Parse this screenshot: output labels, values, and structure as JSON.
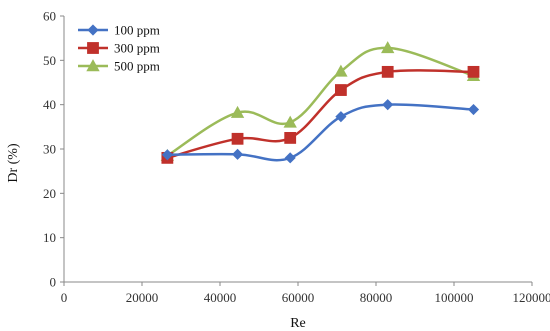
{
  "chart_data": {
    "type": "line",
    "title": "",
    "xlabel": "Re",
    "ylabel": "Dr (%)",
    "xlim": [
      0,
      120000
    ],
    "ylim": [
      0,
      60
    ],
    "xticks": [
      0,
      20000,
      40000,
      60000,
      80000,
      100000,
      120000
    ],
    "xtick_labels": [
      "0",
      "20000",
      "40000",
      "60000",
      "80000",
      "100000",
      "120000"
    ],
    "yticks": [
      0,
      10,
      20,
      30,
      40,
      50,
      60
    ],
    "ytick_labels": [
      "0",
      "10",
      "20",
      "30",
      "40",
      "50",
      "60"
    ],
    "grid": false,
    "legend_position": "top-left",
    "series": [
      {
        "name": "100 ppm",
        "color": "#4472C4",
        "marker": "diamond",
        "x": [
          26500,
          44500,
          58000,
          71000,
          83000,
          105000
        ],
        "y": [
          28.7,
          28.8,
          28.0,
          37.3,
          40.0,
          38.9
        ]
      },
      {
        "name": "300 ppm",
        "color": "#C0312B",
        "marker": "square",
        "x": [
          26500,
          44500,
          58000,
          71000,
          83000,
          105000
        ],
        "y": [
          28.0,
          32.3,
          32.5,
          43.3,
          47.4,
          47.4
        ]
      },
      {
        "name": "500 ppm",
        "color": "#9BBB59",
        "marker": "triangle",
        "x": [
          26500,
          44500,
          58000,
          71000,
          83000,
          105000
        ],
        "y": [
          28.5,
          38.2,
          36.0,
          47.5,
          52.8,
          46.5
        ]
      }
    ]
  }
}
